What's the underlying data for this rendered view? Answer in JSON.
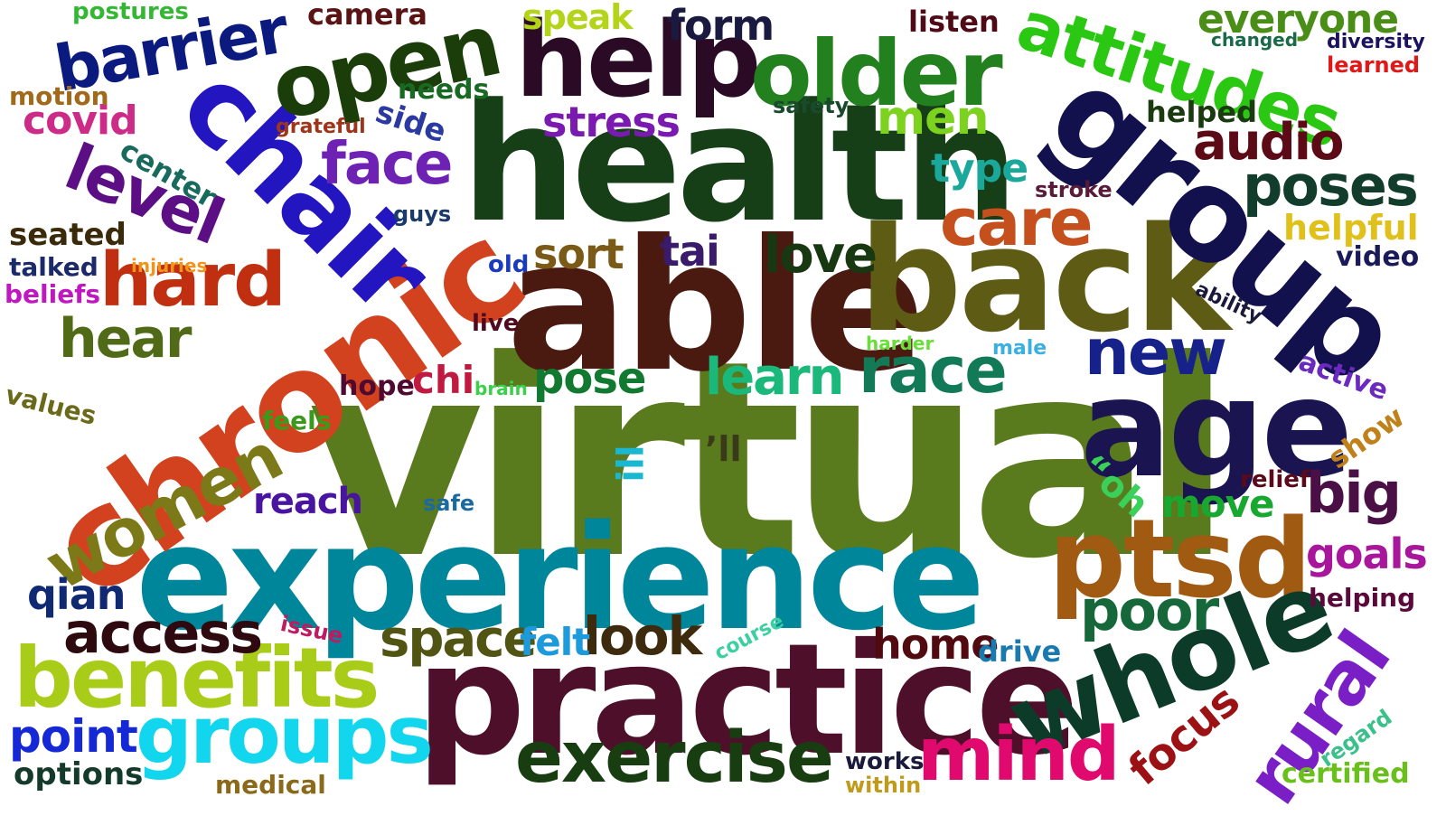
{
  "words": [
    {
      "text": "virtual",
      "color": "#5a7a1e"
    },
    {
      "text": "experience",
      "color": "#00869a"
    },
    {
      "text": "health",
      "color": "#163f17"
    },
    {
      "text": "able",
      "color": "#4a1a10"
    },
    {
      "text": "practice",
      "color": "#4e0f2b"
    },
    {
      "text": "chronic",
      "color": "#d2421e"
    },
    {
      "text": "back",
      "color": "#5e5c14"
    },
    {
      "text": "group",
      "color": "#13114d"
    },
    {
      "text": "age",
      "color": "#1a1550"
    },
    {
      "text": "ptsd",
      "color": "#a05a12"
    },
    {
      "text": "whole",
      "color": "#0c3b2a"
    },
    {
      "text": "chair",
      "color": "#2315c0"
    },
    {
      "text": "help",
      "color": "#2a0a25"
    },
    {
      "text": "older",
      "color": "#22801e"
    },
    {
      "text": "open",
      "color": "#1a3d0a"
    },
    {
      "text": "attitudes",
      "color": "#2ac812"
    },
    {
      "text": "benefits",
      "color": "#a8cc18"
    },
    {
      "text": "groups",
      "color": "#12d6ee"
    },
    {
      "text": "exercise",
      "color": "#173d10"
    },
    {
      "text": "mind",
      "color": "#e00a6e"
    },
    {
      "text": "rural",
      "color": "#7a1fc6"
    },
    {
      "text": "women",
      "color": "#7c7a18"
    },
    {
      "text": "barrier",
      "color": "#0b1a7e"
    },
    {
      "text": "level",
      "color": "#5c0f85"
    },
    {
      "text": "hard",
      "color": "#c02f10"
    },
    {
      "text": "care",
      "color": "#c6501d"
    },
    {
      "text": "race",
      "color": "#137a58"
    },
    {
      "text": "new",
      "color": "#16228a"
    },
    {
      "text": "poor",
      "color": "#16683a"
    },
    {
      "text": "access",
      "color": "#2e0a10"
    },
    {
      "text": "space",
      "color": "#525414"
    },
    {
      "text": "look",
      "color": "#3e2a0c"
    },
    {
      "text": "home",
      "color": "#500a10"
    },
    {
      "text": "poses",
      "color": "#123d2c"
    },
    {
      "text": "audio",
      "color": "#5c0a15"
    },
    {
      "text": "big",
      "color": "#4a0f45"
    },
    {
      "text": "learn",
      "color": "#1ab87a"
    },
    {
      "text": "love",
      "color": "#173810"
    },
    {
      "text": "face",
      "color": "#6e22b4"
    },
    {
      "text": "hear",
      "color": "#506a18"
    },
    {
      "text": "pose",
      "color": "#127a30"
    },
    {
      "text": "point",
      "color": "#1428d6"
    },
    {
      "text": "qian",
      "color": "#0f2a72"
    },
    {
      "text": "reach",
      "color": "#4814a0"
    },
    {
      "text": "felt",
      "color": "#1c9adc"
    },
    {
      "text": "focus",
      "color": "#9c1214"
    },
    {
      "text": "options",
      "color": "#143a2c"
    },
    {
      "text": "move",
      "color": "#18a830"
    },
    {
      "text": "goals",
      "color": "#a8169c"
    },
    {
      "text": "men",
      "color": "#7cd21e"
    },
    {
      "text": "stress",
      "color": "#7a1ab0"
    },
    {
      "text": "form",
      "color": "#1a1a40"
    },
    {
      "text": "everyone",
      "color": "#4a8e18"
    },
    {
      "text": "covid",
      "color": "#cc2c88"
    },
    {
      "text": "sort",
      "color": "#7a5a16"
    },
    {
      "text": "tai",
      "color": "#3a1a6a"
    },
    {
      "text": "type",
      "color": "#1aa89a"
    },
    {
      "text": "speak",
      "color": "#b4d41a"
    },
    {
      "text": "camera",
      "color": "#5a1414"
    },
    {
      "text": "listen",
      "color": "#500a16"
    },
    {
      "text": "postures",
      "color": "#32b832"
    },
    {
      "text": "motion",
      "color": "#a06a1a"
    },
    {
      "text": "needs",
      "color": "#186a22"
    },
    {
      "text": "side",
      "color": "#2a3aa0"
    },
    {
      "text": "center",
      "color": "#186a5c"
    },
    {
      "text": "grateful",
      "color": "#a0341a"
    },
    {
      "text": "safety",
      "color": "#1a4a2e"
    },
    {
      "text": "helped",
      "color": "#1a3a10"
    },
    {
      "text": "changed",
      "color": "#1a6a4a"
    },
    {
      "text": "diversity",
      "color": "#1a1460"
    },
    {
      "text": "learned",
      "color": "#e01818"
    },
    {
      "text": "stroke",
      "color": "#5a1a3a"
    },
    {
      "text": "helpful",
      "color": "#e0c01a"
    },
    {
      "text": "video",
      "color": "#1a1a5a"
    },
    {
      "text": "seated",
      "color": "#3a2a0a"
    },
    {
      "text": "talked",
      "color": "#1a2a6a"
    },
    {
      "text": "beliefs",
      "color": "#c018c0"
    },
    {
      "text": "injuries",
      "color": "#f0941a"
    },
    {
      "text": "guys",
      "color": "#1a3a6a"
    },
    {
      "text": "old",
      "color": "#1a3ac0"
    },
    {
      "text": "live",
      "color": "#500a20"
    },
    {
      "text": "ability",
      "color": "#1a1a3a"
    },
    {
      "text": "harder",
      "color": "#6ade3a"
    },
    {
      "text": "male",
      "color": "#3ab0e0"
    },
    {
      "text": "hope",
      "color": "#500a30"
    },
    {
      "text": "chi",
      "color": "#c01a40"
    },
    {
      "text": "brain",
      "color": "#3ad04a"
    },
    {
      "text": "active",
      "color": "#6a2ac0"
    },
    {
      "text": "values",
      "color": "#6a6a1a"
    },
    {
      "text": "feels",
      "color": "#3a9a1a"
    },
    {
      "text": "ill",
      "color": "#1ab8d0"
    },
    {
      "text": "’ll",
      "color": "#3a3a1a"
    },
    {
      "text": "“oh",
      "color": "#3ad05a"
    },
    {
      "text": "show",
      "color": "#c0801a"
    },
    {
      "text": "relief",
      "color": "#5a0a1a"
    },
    {
      "text": "safe",
      "color": "#1a6aa0"
    },
    {
      "text": "issue",
      "color": "#c01a60"
    },
    {
      "text": "course",
      "color": "#3ad0a0"
    },
    {
      "text": "drive",
      "color": "#1a7ab0"
    },
    {
      "text": "helping",
      "color": "#5a0a3a"
    },
    {
      "text": "regard",
      "color": "#3ac08a"
    },
    {
      "text": "certified",
      "color": "#6ac01a"
    },
    {
      "text": "works",
      "color": "#1a1a3a"
    },
    {
      "text": "within",
      "color": "#c09a1a"
    },
    {
      "text": "medical",
      "color": "#8a6a1a"
    }
  ]
}
